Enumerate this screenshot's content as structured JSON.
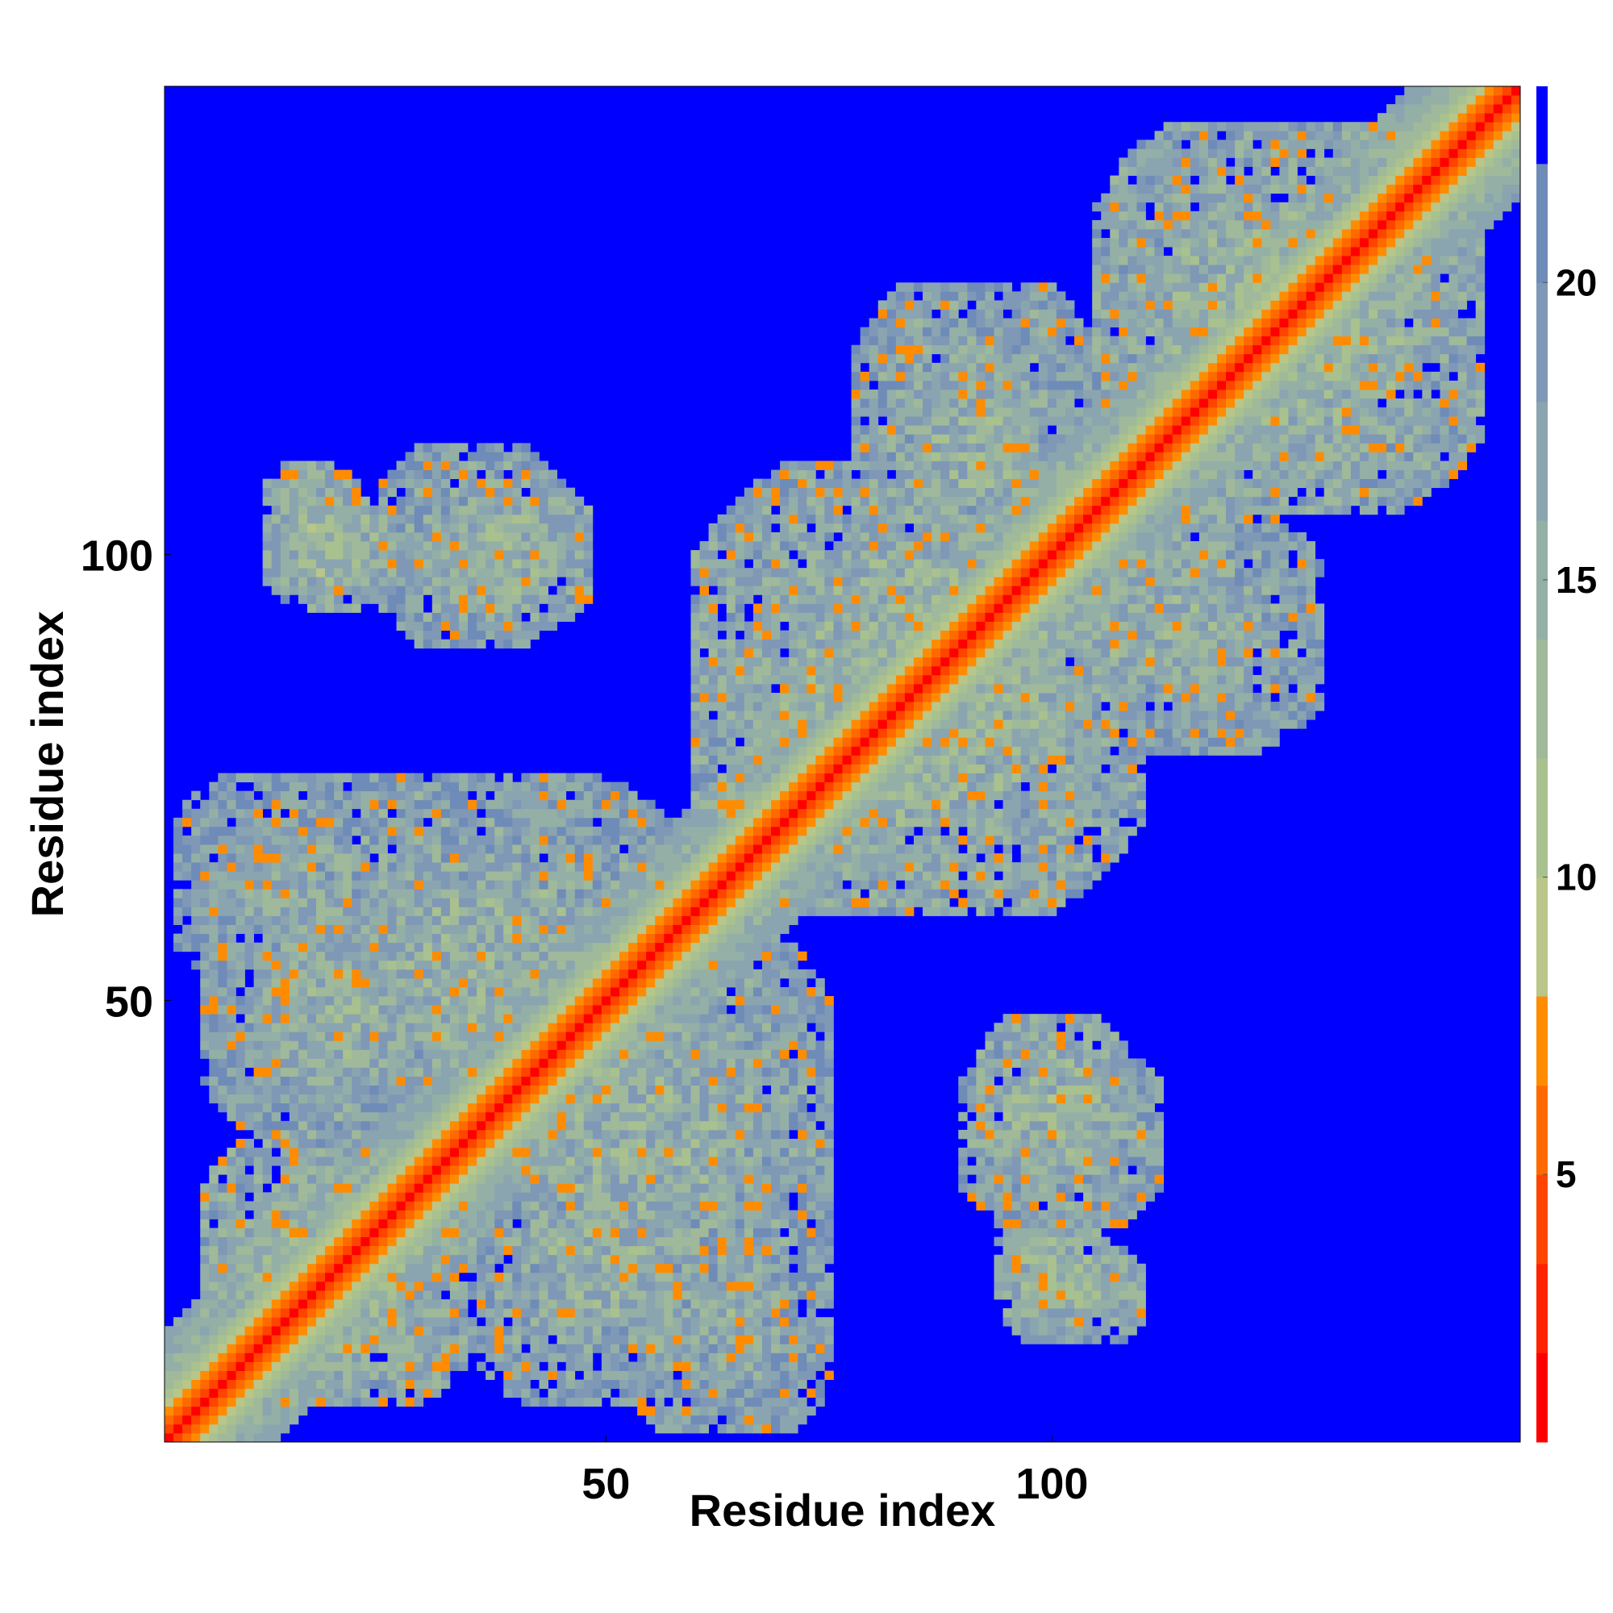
{
  "chart_data": {
    "type": "heatmap",
    "title": "",
    "xlabel": "Residue index",
    "ylabel": "Residue index",
    "n_residues": 152,
    "xlim": [
      1,
      152
    ],
    "ylim": [
      1,
      152
    ],
    "x_ticks": [
      50,
      100
    ],
    "y_ticks": [
      50,
      100
    ],
    "x_tick_labels": [
      "50",
      "100"
    ],
    "y_tick_labels": [
      "50",
      "100"
    ],
    "grid": false,
    "value_description": "pairwise residue distance (colour scale)",
    "value_range": [
      0.5,
      23.3
    ],
    "colorbar": {
      "location": "right",
      "ticks": [
        5,
        10,
        15,
        20
      ],
      "tick_labels": [
        "5",
        "10",
        "15",
        "20"
      ],
      "bands": [
        {
          "from": 0.5,
          "to": 2.0,
          "color": "#ff0000"
        },
        {
          "from": 2.0,
          "to": 3.5,
          "color": "#ff2200"
        },
        {
          "from": 3.5,
          "to": 5.0,
          "color": "#ff4400"
        },
        {
          "from": 5.0,
          "to": 6.5,
          "color": "#ff6a00"
        },
        {
          "from": 6.5,
          "to": 8.0,
          "color": "#ff8c00"
        },
        {
          "from": 8.0,
          "to": 10.0,
          "color": "#b8c68a"
        },
        {
          "from": 10.0,
          "to": 12.0,
          "color": "#a9c18e"
        },
        {
          "from": 12.0,
          "to": 14.0,
          "color": "#9fb99a"
        },
        {
          "from": 14.0,
          "to": 16.0,
          "color": "#94b0a6"
        },
        {
          "from": 16.0,
          "to": 18.0,
          "color": "#8aa4b0"
        },
        {
          "from": 18.0,
          "to": 20.0,
          "color": "#7f98b6"
        },
        {
          "from": 20.0,
          "to": 22.0,
          "color": "#6f8bb8"
        },
        {
          "from": 22.0,
          "to": 23.3,
          "color": "#0000ff"
        }
      ]
    },
    "diagonal": {
      "value_on_diagonal": 0.8,
      "near_diagonal": [
        {
          "offset": 1,
          "value": 3.8
        },
        {
          "offset": 2,
          "value": 5.8
        },
        {
          "offset": 3,
          "value": 7.0
        },
        {
          "offset": 4,
          "value": 9.5
        },
        {
          "offset": 5,
          "value": 11.5
        },
        {
          "offset": 6,
          "value": 13.0
        }
      ]
    },
    "contact_regions": [
      {
        "i_range": [
          5,
          35
        ],
        "j_range": [
          5,
          35
        ],
        "mean_value": 14
      },
      {
        "i_range": [
          10,
          60
        ],
        "j_range": [
          35,
          75
        ],
        "mean_value": 15
      },
      {
        "i_range": [
          15,
          25
        ],
        "j_range": [
          94,
          106
        ],
        "mean_value": 13
      },
      {
        "i_range": [
          28,
          48
        ],
        "j_range": [
          92,
          108
        ],
        "mean_value": 14
      },
      {
        "i_range": [
          35,
          65
        ],
        "j_range": [
          5,
          35
        ],
        "mean_value": 15
      },
      {
        "i_range": [
          52,
          75
        ],
        "j_range": [
          2,
          28
        ],
        "mean_value": 16
      },
      {
        "i_range": [
          60,
          110
        ],
        "j_range": [
          60,
          110
        ],
        "mean_value": 14
      },
      {
        "i_range": [
          78,
          105
        ],
        "j_range": [
          95,
          130
        ],
        "mean_value": 15
      },
      {
        "i_range": [
          90,
          112
        ],
        "j_range": [
          25,
          45
        ],
        "mean_value": 15
      },
      {
        "i_range": [
          95,
          110
        ],
        "j_range": [
          12,
          22
        ],
        "mean_value": 14
      },
      {
        "i_range": [
          105,
          145
        ],
        "j_range": [
          105,
          148
        ],
        "mean_value": 14
      }
    ]
  }
}
